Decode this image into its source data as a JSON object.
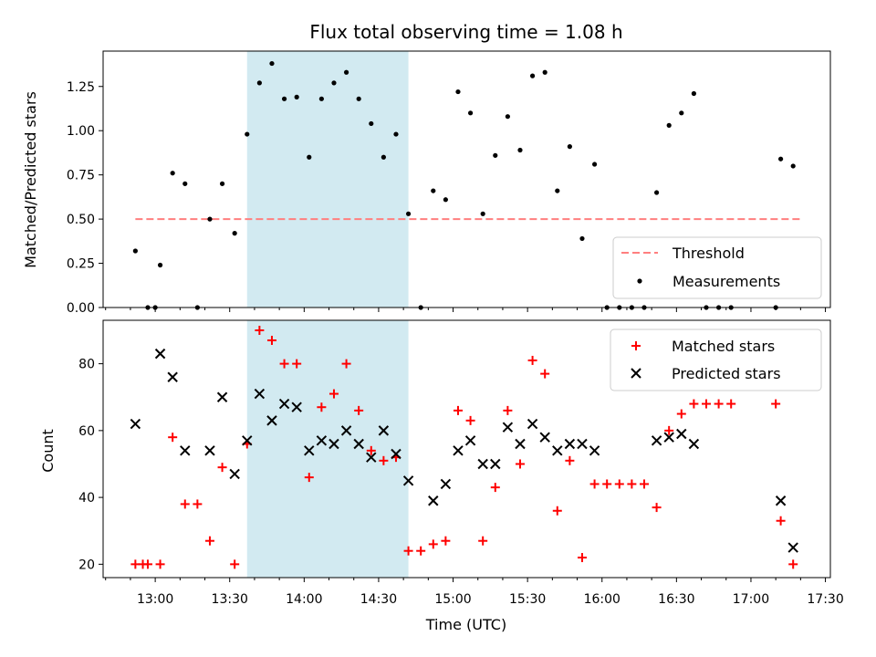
{
  "colors": {
    "span": "#add8e6",
    "threshold": "#ff7f7f",
    "measurement": "#000000",
    "matched": "#ff0000",
    "predicted": "#000000"
  },
  "chart_data": [
    {
      "type": "scatter",
      "title": "Flux total observing time = 1.08 h",
      "xlabel": "",
      "ylabel": "Matched/Predicted stars",
      "x_unit": "time of day (UTC)",
      "xlim": [
        "12:39",
        "17:32"
      ],
      "ylim": [
        0,
        1.45
      ],
      "grid": false,
      "legend_position": "lower-right",
      "x_tick_labels": [
        "13:00",
        "13:30",
        "14:00",
        "14:30",
        "15:00",
        "15:30",
        "16:00",
        "16:30",
        "17:00",
        "17:30"
      ],
      "y_tick_labels": [
        "0.00",
        "0.25",
        "0.50",
        "0.75",
        "1.00",
        "1.25"
      ],
      "y_ticks": [
        0,
        0.25,
        0.5,
        0.75,
        1.0,
        1.25
      ],
      "shaded_span": [
        "13:37",
        "14:42"
      ],
      "threshold": {
        "name": "Threshold",
        "value": 0.5,
        "x_range": [
          "12:52",
          "17:20"
        ]
      },
      "series": [
        {
          "name": "Measurements",
          "points": [
            [
              "12:52",
              0.32
            ],
            [
              "12:57",
              0.0
            ],
            [
              "13:00",
              0.0
            ],
            [
              "13:02",
              0.24
            ],
            [
              "13:07",
              0.76
            ],
            [
              "13:12",
              0.7
            ],
            [
              "13:17",
              0.0
            ],
            [
              "13:22",
              0.5
            ],
            [
              "13:27",
              0.7
            ],
            [
              "13:32",
              0.42
            ],
            [
              "13:37",
              0.98
            ],
            [
              "13:42",
              1.27
            ],
            [
              "13:47",
              1.38
            ],
            [
              "13:52",
              1.18
            ],
            [
              "13:57",
              1.19
            ],
            [
              "14:02",
              0.85
            ],
            [
              "14:07",
              1.18
            ],
            [
              "14:12",
              1.27
            ],
            [
              "14:17",
              1.33
            ],
            [
              "14:22",
              1.18
            ],
            [
              "14:27",
              1.04
            ],
            [
              "14:32",
              0.85
            ],
            [
              "14:37",
              0.98
            ],
            [
              "14:42",
              0.53
            ],
            [
              "14:47",
              0.0
            ],
            [
              "14:52",
              0.66
            ],
            [
              "14:57",
              0.61
            ],
            [
              "15:02",
              1.22
            ],
            [
              "15:07",
              1.1
            ],
            [
              "15:12",
              0.53
            ],
            [
              "15:17",
              0.86
            ],
            [
              "15:22",
              1.08
            ],
            [
              "15:27",
              0.89
            ],
            [
              "15:32",
              1.31
            ],
            [
              "15:37",
              1.33
            ],
            [
              "15:42",
              0.66
            ],
            [
              "15:47",
              0.91
            ],
            [
              "15:52",
              0.39
            ],
            [
              "15:57",
              0.81
            ],
            [
              "16:02",
              0.0
            ],
            [
              "16:07",
              0.0
            ],
            [
              "16:12",
              0.0
            ],
            [
              "16:17",
              0.0
            ],
            [
              "16:22",
              0.65
            ],
            [
              "16:27",
              1.03
            ],
            [
              "16:32",
              1.1
            ],
            [
              "16:37",
              1.21
            ],
            [
              "16:42",
              0.0
            ],
            [
              "16:47",
              0.0
            ],
            [
              "16:52",
              0.0
            ],
            [
              "17:10",
              0.0
            ],
            [
              "17:12",
              0.84
            ],
            [
              "17:17",
              0.8
            ]
          ]
        }
      ]
    },
    {
      "type": "scatter",
      "title": "",
      "xlabel": "Time (UTC)",
      "ylabel": "Count",
      "x_unit": "time of day (UTC)",
      "xlim": [
        "12:39",
        "17:32"
      ],
      "ylim": [
        16,
        93
      ],
      "grid": false,
      "legend_position": "upper-right",
      "x_tick_labels": [
        "13:00",
        "13:30",
        "14:00",
        "14:30",
        "15:00",
        "15:30",
        "16:00",
        "16:30",
        "17:00",
        "17:30"
      ],
      "y_tick_labels": [
        "20",
        "40",
        "60",
        "80"
      ],
      "y_ticks": [
        20,
        40,
        60,
        80
      ],
      "shaded_span": [
        "13:37",
        "14:42"
      ],
      "series": [
        {
          "name": "Matched stars",
          "marker": "plus",
          "points": [
            [
              "12:52",
              20
            ],
            [
              "12:57",
              20
            ],
            [
              "13:02",
              20
            ],
            [
              "12:55",
              20
            ],
            [
              "13:07",
              58
            ],
            [
              "13:12",
              38
            ],
            [
              "13:17",
              38
            ],
            [
              "13:22",
              27
            ],
            [
              "13:27",
              49
            ],
            [
              "13:32",
              20
            ],
            [
              "13:37",
              56
            ],
            [
              "13:42",
              90
            ],
            [
              "13:47",
              87
            ],
            [
              "13:52",
              80
            ],
            [
              "13:57",
              80
            ],
            [
              "14:02",
              46
            ],
            [
              "14:07",
              67
            ],
            [
              "14:12",
              71
            ],
            [
              "14:17",
              80
            ],
            [
              "14:22",
              66
            ],
            [
              "14:27",
              54
            ],
            [
              "14:32",
              51
            ],
            [
              "14:37",
              52
            ],
            [
              "14:42",
              24
            ],
            [
              "14:47",
              24
            ],
            [
              "14:52",
              26
            ],
            [
              "14:57",
              27
            ],
            [
              "15:02",
              66
            ],
            [
              "15:07",
              63
            ],
            [
              "15:12",
              27
            ],
            [
              "15:17",
              43
            ],
            [
              "15:22",
              66
            ],
            [
              "15:27",
              50
            ],
            [
              "15:32",
              81
            ],
            [
              "15:37",
              77
            ],
            [
              "15:42",
              36
            ],
            [
              "15:47",
              51
            ],
            [
              "15:52",
              22
            ],
            [
              "15:57",
              44
            ],
            [
              "16:02",
              44
            ],
            [
              "16:07",
              44
            ],
            [
              "16:12",
              44
            ],
            [
              "16:17",
              44
            ],
            [
              "16:22",
              37
            ],
            [
              "16:27",
              60
            ],
            [
              "16:32",
              65
            ],
            [
              "16:37",
              68
            ],
            [
              "16:42",
              68
            ],
            [
              "16:47",
              68
            ],
            [
              "16:52",
              68
            ],
            [
              "17:10",
              68
            ],
            [
              "17:12",
              33
            ],
            [
              "17:17",
              20
            ]
          ]
        },
        {
          "name": "Predicted stars",
          "marker": "x",
          "points": [
            [
              "12:52",
              62
            ],
            [
              "13:02",
              83
            ],
            [
              "13:07",
              76
            ],
            [
              "13:12",
              54
            ],
            [
              "13:22",
              54
            ],
            [
              "13:27",
              70
            ],
            [
              "13:32",
              47
            ],
            [
              "13:37",
              57
            ],
            [
              "13:42",
              71
            ],
            [
              "13:47",
              63
            ],
            [
              "13:52",
              68
            ],
            [
              "13:57",
              67
            ],
            [
              "14:02",
              54
            ],
            [
              "14:07",
              57
            ],
            [
              "14:12",
              56
            ],
            [
              "14:17",
              60
            ],
            [
              "14:22",
              56
            ],
            [
              "14:27",
              52
            ],
            [
              "14:32",
              60
            ],
            [
              "14:37",
              53
            ],
            [
              "14:42",
              45
            ],
            [
              "14:52",
              39
            ],
            [
              "14:57",
              44
            ],
            [
              "15:02",
              54
            ],
            [
              "15:07",
              57
            ],
            [
              "15:12",
              50
            ],
            [
              "15:17",
              50
            ],
            [
              "15:22",
              61
            ],
            [
              "15:27",
              56
            ],
            [
              "15:32",
              62
            ],
            [
              "15:37",
              58
            ],
            [
              "15:42",
              54
            ],
            [
              "15:47",
              56
            ],
            [
              "15:52",
              56
            ],
            [
              "15:57",
              54
            ],
            [
              "16:22",
              57
            ],
            [
              "16:27",
              58
            ],
            [
              "16:32",
              59
            ],
            [
              "16:37",
              56
            ],
            [
              "17:12",
              39
            ],
            [
              "17:17",
              25
            ]
          ]
        }
      ]
    }
  ]
}
